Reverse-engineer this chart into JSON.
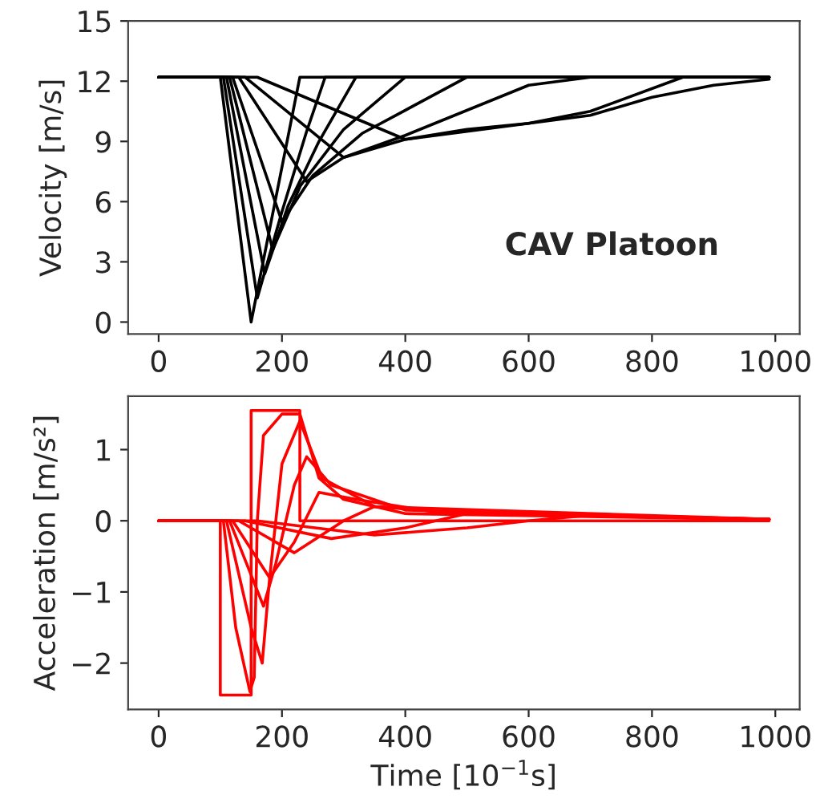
{
  "chart_data": [
    {
      "type": "line",
      "ylabel": "Velocity [m/s]",
      "xlim": [
        -49.5,
        1039.5
      ],
      "xticks": [
        0,
        200,
        400,
        600,
        800,
        1000
      ],
      "ylim": [
        -0.6,
        15
      ],
      "yticks": [
        0,
        3,
        6,
        9,
        12,
        15
      ],
      "grid": false,
      "legend": false,
      "marker": "none",
      "line_style": "solid",
      "annotations": [
        "CAV Platoon"
      ],
      "series": [
        {
          "color": "#000000",
          "x": [
            0,
            100,
            150,
            229,
            990
          ],
          "values": [
            12.2,
            12.2,
            0,
            12.2,
            12.2
          ]
        },
        {
          "color": "#000000",
          "x": [
            0,
            105,
            160,
            200,
            240,
            270,
            990
          ],
          "values": [
            12.2,
            12.2,
            1.2,
            5.5,
            9.5,
            12.2,
            12.2
          ]
        },
        {
          "color": "#000000",
          "x": [
            0,
            110,
            172,
            210,
            260,
            320,
            990
          ],
          "values": [
            12.2,
            12.2,
            2.4,
            5.8,
            9,
            12.2,
            12.2
          ]
        },
        {
          "color": "#000000",
          "x": [
            0,
            115,
            185,
            230,
            300,
            400,
            990
          ],
          "values": [
            12.2,
            12.2,
            3.6,
            6.8,
            9.6,
            12.2,
            12.2
          ]
        },
        {
          "color": "#000000",
          "x": [
            0,
            120,
            200,
            250,
            330,
            500,
            990
          ],
          "values": [
            12.2,
            12.2,
            5,
            7.3,
            9.4,
            12.2,
            12.2
          ]
        },
        {
          "color": "#000000",
          "x": [
            0,
            130,
            240,
            300,
            400,
            600,
            700,
            990
          ],
          "values": [
            12.2,
            12.2,
            7,
            8.2,
            9.3,
            11.8,
            12.2,
            12.2
          ]
        },
        {
          "color": "#000000",
          "x": [
            0,
            140,
            300,
            400,
            600,
            700,
            850,
            990
          ],
          "values": [
            12.2,
            12.2,
            8.2,
            9.1,
            9.9,
            10.5,
            12.2,
            12.2
          ]
        },
        {
          "color": "#000000",
          "x": [
            0,
            160,
            400,
            500,
            600,
            700,
            800,
            900,
            990
          ],
          "values": [
            12.2,
            12.2,
            9.1,
            9.6,
            9.9,
            10.3,
            11.2,
            11.8,
            12.1
          ]
        }
      ]
    },
    {
      "type": "line",
      "xlabel": "Time [10$^{−1}$s]",
      "ylabel": "Acceleration [m/s²]",
      "xlim": [
        -49.5,
        1039.5
      ],
      "xticks": [
        0,
        200,
        400,
        600,
        800,
        1000
      ],
      "ylim": [
        -2.65,
        1.75
      ],
      "yticks": [
        {
          "value": -2,
          "label": "−2"
        },
        {
          "value": -1,
          "label": "−1"
        },
        0,
        1
      ],
      "grid": false,
      "legend": false,
      "marker": "none",
      "line_style": "solid",
      "series": [
        {
          "color": "#ff0000",
          "x": [
            0,
            100,
            100,
            150,
            150,
            229,
            229,
            990
          ],
          "values": [
            0,
            0,
            -2.45,
            -2.45,
            1.55,
            1.55,
            0,
            0
          ]
        },
        {
          "color": "#ff0000",
          "x": [
            0,
            105,
            125,
            148,
            155,
            160,
            170,
            200,
            229,
            260,
            300,
            400,
            990
          ],
          "values": [
            0,
            0,
            -1.5,
            -2.4,
            -2.2,
            0,
            1.2,
            1.5,
            1.5,
            0.6,
            0.3,
            0.1,
            0.02
          ]
        },
        {
          "color": "#ff0000",
          "x": [
            0,
            110,
            150,
            168,
            180,
            200,
            229,
            265,
            350,
            990
          ],
          "values": [
            0,
            0,
            -1.5,
            -2,
            -0.8,
            0.8,
            1.4,
            0.6,
            0.2,
            0.02
          ]
        },
        {
          "color": "#ff0000",
          "x": [
            0,
            115,
            170,
            190,
            220,
            240,
            280,
            400,
            990
          ],
          "values": [
            0,
            0,
            -1.2,
            -0.6,
            0.5,
            0.9,
            0.5,
            0.15,
            0.02
          ]
        },
        {
          "color": "#ff0000",
          "x": [
            0,
            120,
            180,
            220,
            260,
            320,
            450,
            990
          ],
          "values": [
            0,
            0,
            -0.8,
            -0.3,
            0.4,
            0.3,
            0.12,
            0.02
          ]
        },
        {
          "color": "#ff0000",
          "x": [
            0,
            130,
            220,
            300,
            350,
            500,
            990
          ],
          "values": [
            0,
            0,
            -0.45,
            0,
            0.2,
            0.1,
            0.02
          ]
        },
        {
          "color": "#ff0000",
          "x": [
            0,
            140,
            280,
            400,
            500,
            650,
            990
          ],
          "values": [
            0,
            0,
            -0.25,
            -0.1,
            0.1,
            0.08,
            0.02
          ]
        },
        {
          "color": "#ff0000",
          "x": [
            0,
            160,
            350,
            500,
            600,
            700,
            990
          ],
          "values": [
            0,
            0,
            -0.2,
            -0.1,
            0,
            0.08,
            0.02
          ]
        }
      ]
    }
  ]
}
